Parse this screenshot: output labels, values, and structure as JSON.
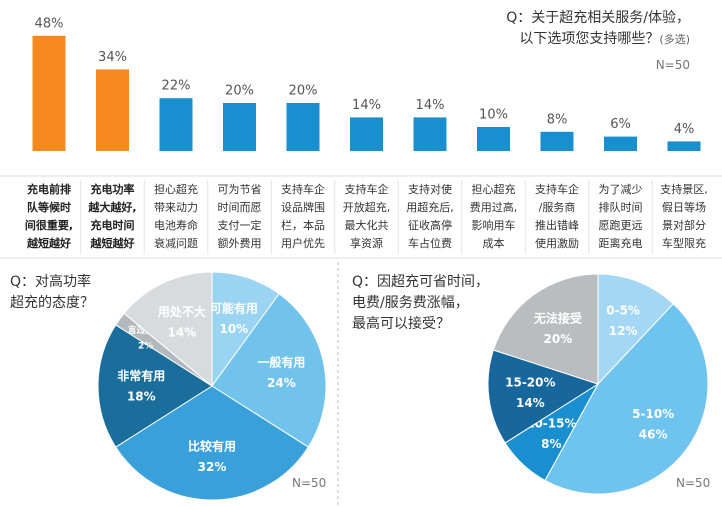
{
  "chart_data": [
    {
      "type": "bar",
      "title": "Q：关于超充相关服务/体验，\n以下选项您支持哪些？",
      "note": "(多选)",
      "n_label": "N=50",
      "categories": [
        "充电前排\n队等候时\n间很重要,\n越短越好",
        "充电功率\n越大越好,\n充电时间\n越短越好",
        "担心超充\n带来动力\n电池寿命\n衰减问题",
        "可为节省\n时间而愿\n支付一定\n额外费用",
        "支持车企\n设品牌围\n栏，本品\n用户优先",
        "支持车企\n开放超充,\n最大化共\n享资源",
        "支持对使\n用超充后,\n征收高停\n车占位费",
        "担心超充\n费用过高,\n影响用车\n成本",
        "支持车企\n/服务商\n推出错峰\n使用激励",
        "为了减少\n排队时间\n愿跑更远\n距离充电",
        "支持景区,\n假日等场\n景对部分\n车型限充"
      ],
      "values": [
        48,
        34,
        22,
        20,
        20,
        14,
        14,
        10,
        8,
        6,
        4
      ],
      "value_labels": [
        "48%",
        "34%",
        "22%",
        "20%",
        "20%",
        "14%",
        "14%",
        "10%",
        "8%",
        "6%",
        "4%"
      ],
      "color": "#1a8fd0",
      "highlight_color": "#f5891f",
      "highlight": [
        0,
        1
      ]
    },
    {
      "type": "pie",
      "title": "Q：对高功率\n超充的态度？",
      "n_label": "N=50",
      "categories": [
        "可能有用",
        "一般有用",
        "比较有用",
        "非常有用",
        "言过其实",
        "用处不大"
      ],
      "values": [
        10,
        24,
        32,
        18,
        2,
        14
      ],
      "value_labels": [
        "10%",
        "24%",
        "32%",
        "18%",
        "2%",
        "14%"
      ],
      "colors": [
        "#9ad4f2",
        "#72c3ec",
        "#3aa0da",
        "#1b6e9c",
        "#b3b8bc",
        "#d8dbde"
      ]
    },
    {
      "type": "pie",
      "title": "Q：因超充可省时间，\n电费/服务费涨幅，\n最高可以接受？",
      "n_label": "N=50",
      "categories": [
        "0-5%",
        "5-10%",
        "10-15%",
        "15-20%",
        "无法接受"
      ],
      "values": [
        12,
        46,
        8,
        14,
        20
      ],
      "value_labels": [
        "12%",
        "46%",
        "8%",
        "14%",
        "20%"
      ],
      "colors": [
        "#a4d7f3",
        "#6ec4ee",
        "#1a8fd0",
        "#17679c",
        "#b9bdc0"
      ]
    }
  ]
}
